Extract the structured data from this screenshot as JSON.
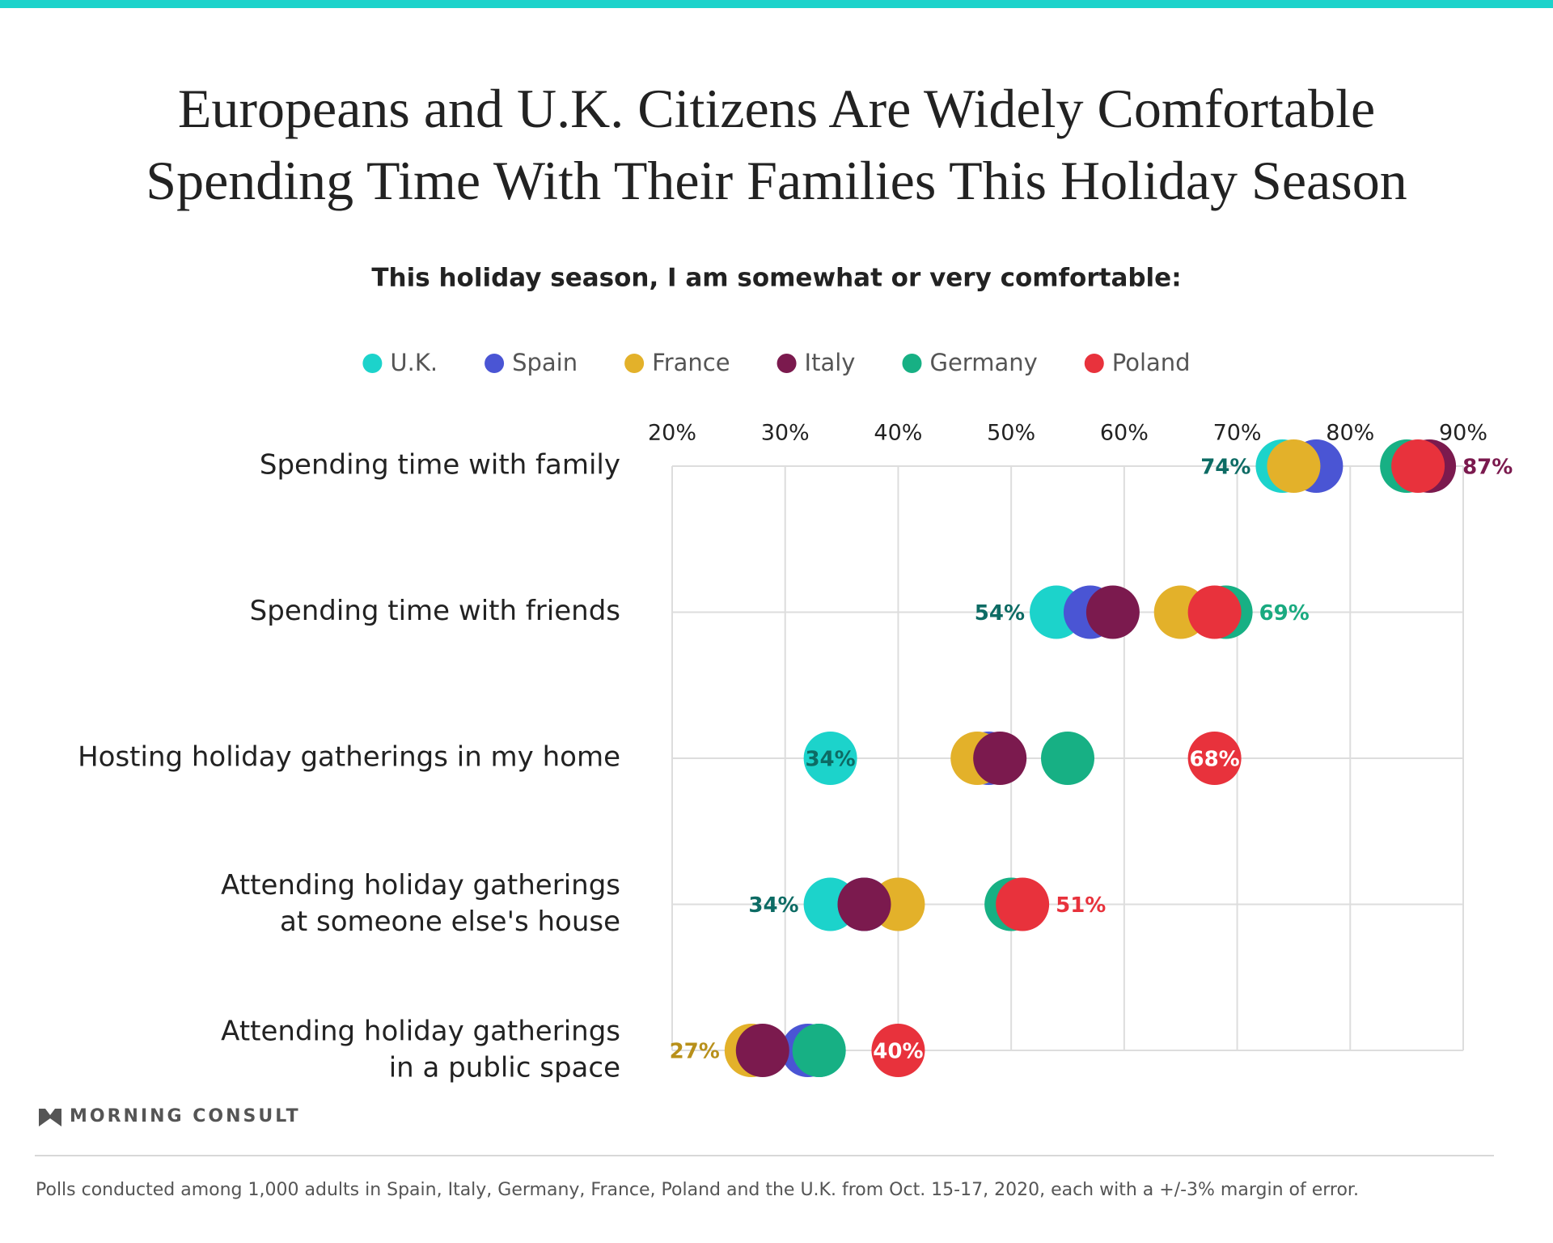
{
  "chart_data": {
    "type": "dot",
    "title": "Europeans and U.K. Citizens Are Widely Comfortable\nSpending Time With Their Families This Holiday Season",
    "subtitle": "This holiday season, I am somewhat or very comfortable:",
    "categories": [
      "Spending time with family",
      "Spending time with friends",
      "Hosting holiday gatherings in my home",
      "Attending holiday gatherings\nat someone else's house",
      "Attending holiday gatherings\nin a public space"
    ],
    "series": [
      {
        "name": "U.K.",
        "color": "#1cd3cb",
        "label_color": "#0d6b64",
        "values": [
          74,
          54,
          34,
          34,
          33
        ],
        "value_labels": [
          "74%",
          "54%",
          "34%",
          "34%",
          null
        ]
      },
      {
        "name": "Spain",
        "color": "#4a55d4",
        "label_color": "#4a55d4",
        "values": [
          77,
          57,
          48,
          37,
          32
        ],
        "value_labels": [
          null,
          null,
          null,
          null,
          null
        ]
      },
      {
        "name": "France",
        "color": "#e3b12a",
        "label_color": "#b8901a",
        "values": [
          75,
          65,
          47,
          40,
          27
        ],
        "value_labels": [
          null,
          null,
          null,
          null,
          "27%"
        ]
      },
      {
        "name": "Italy",
        "color": "#7b1a4e",
        "label_color": "#7b1a4e",
        "values": [
          87,
          59,
          49,
          37,
          28
        ],
        "value_labels": [
          "87%",
          null,
          null,
          null,
          null
        ]
      },
      {
        "name": "Germany",
        "color": "#17b084",
        "label_color": "#1aaa80",
        "values": [
          85,
          69,
          55,
          50,
          33
        ],
        "value_labels": [
          null,
          "69%",
          null,
          null,
          null
        ]
      },
      {
        "name": "Poland",
        "color": "#e8323c",
        "label_color": "#e8323c",
        "values": [
          86,
          68,
          68,
          51,
          40
        ],
        "value_labels": [
          null,
          null,
          "68%",
          "51%",
          "40%"
        ]
      }
    ],
    "xlim": [
      20,
      90
    ],
    "xticks": [
      {
        "value": 20,
        "label": "20%"
      },
      {
        "value": 30,
        "label": "30%"
      },
      {
        "value": 40,
        "label": "40%"
      },
      {
        "value": 50,
        "label": "50%"
      },
      {
        "value": 60,
        "label": "60%"
      },
      {
        "value": 70,
        "label": "70%"
      },
      {
        "value": 80,
        "label": "80%"
      },
      {
        "value": 90,
        "label": "90%"
      }
    ],
    "grid": true,
    "brand": "MORNING CONSULT",
    "note": "Polls conducted among 1,000 adults in Spain, Italy, Germany, France, Poland and the U.K. from Oct. 15-17, 2020, each with a +/-3% margin of error."
  }
}
